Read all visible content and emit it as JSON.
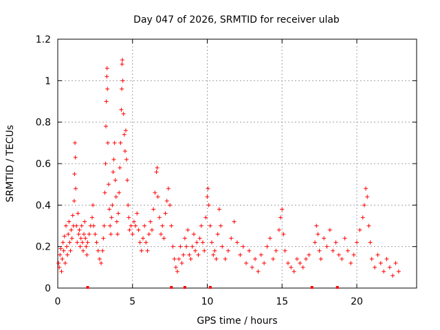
{
  "chart_data": {
    "type": "scatter",
    "title": "Day 047 of 2026, SRMTID for receiver ulab",
    "xlabel": "GPS time / hours",
    "ylabel": "SRMTID / TECUs",
    "xlim": [
      0,
      24
    ],
    "ylim": [
      0,
      1.2
    ],
    "xticks": [
      0,
      5,
      10,
      15,
      20
    ],
    "xtick_labels": [
      "0",
      "5",
      "10",
      "15",
      "20"
    ],
    "yticks": [
      0,
      0.2,
      0.4,
      0.6,
      0.8,
      1.0,
      1.2
    ],
    "ytick_labels": [
      "0",
      "0.2",
      "0.4",
      "0.6",
      "0.8",
      "1",
      "1.2"
    ],
    "grid": true,
    "marker": "+",
    "color": "#ff0000",
    "series": [
      {
        "name": "SRMTID",
        "points": [
          [
            0.05,
            0.12
          ],
          [
            0.1,
            0.1
          ],
          [
            0.15,
            0.16
          ],
          [
            0.2,
            0.19
          ],
          [
            0.25,
            0.08
          ],
          [
            0.3,
            0.14
          ],
          [
            0.35,
            0.22
          ],
          [
            0.4,
            0.18
          ],
          [
            0.45,
            0.25
          ],
          [
            0.5,
            0.12
          ],
          [
            0.55,
            0.3
          ],
          [
            0.6,
            0.2
          ],
          [
            0.65,
            0.16
          ],
          [
            0.7,
            0.26
          ],
          [
            0.75,
            0.32
          ],
          [
            0.8,
            0.22
          ],
          [
            0.85,
            0.18
          ],
          [
            0.9,
            0.28
          ],
          [
            0.95,
            0.24
          ],
          [
            1.0,
            0.35
          ],
          [
            1.05,
            0.3
          ],
          [
            1.1,
            0.42
          ],
          [
            1.12,
            0.55
          ],
          [
            1.15,
            0.7
          ],
          [
            1.18,
            0.63
          ],
          [
            1.2,
            0.48
          ],
          [
            1.25,
            0.3
          ],
          [
            1.3,
            0.22
          ],
          [
            1.35,
            0.36
          ],
          [
            1.4,
            0.26
          ],
          [
            1.45,
            0.28
          ],
          [
            1.5,
            0.2
          ],
          [
            1.55,
            0.24
          ],
          [
            1.6,
            0.3
          ],
          [
            1.65,
            0.22
          ],
          [
            1.7,
            0.18
          ],
          [
            1.75,
            0.26
          ],
          [
            1.8,
            0.32
          ],
          [
            1.85,
            0.24
          ],
          [
            1.9,
            0.2
          ],
          [
            1.95,
            0.16
          ],
          [
            2.0,
            0.22
          ],
          [
            2.1,
            0.26
          ],
          [
            2.2,
            0.3
          ],
          [
            2.3,
            0.34
          ],
          [
            2.35,
            0.4
          ],
          [
            2.4,
            0.3
          ],
          [
            2.5,
            0.26
          ],
          [
            2.6,
            0.22
          ],
          [
            2.7,
            0.18
          ],
          [
            2.8,
            0.14
          ],
          [
            2.9,
            0.12
          ],
          [
            3.0,
            0.18
          ],
          [
            3.05,
            0.24
          ],
          [
            3.1,
            0.3
          ],
          [
            3.15,
            0.46
          ],
          [
            3.2,
            0.6
          ],
          [
            3.22,
            0.78
          ],
          [
            3.25,
            0.9
          ],
          [
            3.28,
            1.02
          ],
          [
            3.3,
            1.06
          ],
          [
            3.32,
            0.96
          ],
          [
            3.35,
            0.7
          ],
          [
            3.4,
            0.5
          ],
          [
            3.45,
            0.38
          ],
          [
            3.5,
            0.3
          ],
          [
            3.55,
            0.26
          ],
          [
            3.6,
            0.34
          ],
          [
            3.65,
            0.4
          ],
          [
            3.7,
            0.56
          ],
          [
            3.75,
            0.62
          ],
          [
            3.8,
            0.7
          ],
          [
            3.85,
            0.52
          ],
          [
            3.9,
            0.44
          ],
          [
            3.95,
            0.32
          ],
          [
            4.0,
            0.26
          ],
          [
            4.05,
            0.36
          ],
          [
            4.1,
            0.46
          ],
          [
            4.15,
            0.58
          ],
          [
            4.2,
            0.7
          ],
          [
            4.25,
            0.86
          ],
          [
            4.28,
            0.96
          ],
          [
            4.3,
            1.08
          ],
          [
            4.32,
            1.1
          ],
          [
            4.35,
            1.0
          ],
          [
            4.4,
            0.84
          ],
          [
            4.45,
            0.74
          ],
          [
            4.5,
            0.66
          ],
          [
            4.55,
            0.76
          ],
          [
            4.6,
            0.62
          ],
          [
            4.65,
            0.52
          ],
          [
            4.7,
            0.4
          ],
          [
            4.75,
            0.34
          ],
          [
            4.8,
            0.28
          ],
          [
            4.9,
            0.3
          ],
          [
            5.0,
            0.26
          ],
          [
            5.1,
            0.32
          ],
          [
            5.2,
            0.3
          ],
          [
            5.3,
            0.36
          ],
          [
            5.4,
            0.28
          ],
          [
            5.5,
            0.22
          ],
          [
            5.6,
            0.18
          ],
          [
            5.7,
            0.24
          ],
          [
            5.8,
            0.3
          ],
          [
            5.9,
            0.22
          ],
          [
            6.0,
            0.18
          ],
          [
            6.1,
            0.26
          ],
          [
            6.2,
            0.32
          ],
          [
            6.3,
            0.28
          ],
          [
            6.4,
            0.38
          ],
          [
            6.5,
            0.46
          ],
          [
            6.6,
            0.56
          ],
          [
            6.65,
            0.58
          ],
          [
            6.7,
            0.44
          ],
          [
            6.8,
            0.34
          ],
          [
            6.9,
            0.26
          ],
          [
            7.0,
            0.3
          ],
          [
            7.1,
            0.24
          ],
          [
            7.2,
            0.36
          ],
          [
            7.3,
            0.42
          ],
          [
            7.4,
            0.48
          ],
          [
            7.5,
            0.4
          ],
          [
            7.6,
            0.3
          ],
          [
            7.7,
            0.2
          ],
          [
            7.8,
            0.14
          ],
          [
            7.9,
            0.1
          ],
          [
            8.0,
            0.08
          ],
          [
            8.1,
            0.14
          ],
          [
            8.2,
            0.2
          ],
          [
            8.3,
            0.12
          ],
          [
            8.4,
            0.16
          ],
          [
            8.5,
            0.24
          ],
          [
            8.6,
            0.2
          ],
          [
            8.7,
            0.28
          ],
          [
            8.8,
            0.16
          ],
          [
            8.9,
            0.14
          ],
          [
            9.0,
            0.2
          ],
          [
            9.1,
            0.26
          ],
          [
            9.2,
            0.18
          ],
          [
            9.3,
            0.22
          ],
          [
            9.4,
            0.16
          ],
          [
            9.5,
            0.24
          ],
          [
            9.6,
            0.3
          ],
          [
            9.7,
            0.22
          ],
          [
            9.8,
            0.18
          ],
          [
            9.9,
            0.34
          ],
          [
            10.0,
            0.44
          ],
          [
            10.05,
            0.48
          ],
          [
            10.1,
            0.4
          ],
          [
            10.2,
            0.3
          ],
          [
            10.3,
            0.22
          ],
          [
            10.4,
            0.16
          ],
          [
            10.5,
            0.18
          ],
          [
            10.6,
            0.14
          ],
          [
            10.7,
            0.26
          ],
          [
            10.8,
            0.38
          ],
          [
            10.9,
            0.3
          ],
          [
            11.0,
            0.2
          ],
          [
            11.2,
            0.14
          ],
          [
            11.4,
            0.18
          ],
          [
            11.6,
            0.24
          ],
          [
            11.8,
            0.32
          ],
          [
            12.0,
            0.22
          ],
          [
            12.2,
            0.16
          ],
          [
            12.4,
            0.2
          ],
          [
            12.6,
            0.12
          ],
          [
            12.8,
            0.18
          ],
          [
            13.0,
            0.1
          ],
          [
            13.2,
            0.14
          ],
          [
            13.4,
            0.08
          ],
          [
            13.6,
            0.16
          ],
          [
            13.8,
            0.12
          ],
          [
            14.0,
            0.2
          ],
          [
            14.2,
            0.24
          ],
          [
            14.4,
            0.14
          ],
          [
            14.6,
            0.18
          ],
          [
            14.8,
            0.28
          ],
          [
            14.9,
            0.34
          ],
          [
            15.0,
            0.38
          ],
          [
            15.1,
            0.26
          ],
          [
            15.2,
            0.18
          ],
          [
            15.4,
            0.12
          ],
          [
            15.6,
            0.1
          ],
          [
            15.8,
            0.08
          ],
          [
            16.0,
            0.14
          ],
          [
            16.2,
            0.12
          ],
          [
            16.4,
            0.1
          ],
          [
            16.6,
            0.14
          ],
          [
            16.8,
            0.16
          ],
          [
            17.2,
            0.22
          ],
          [
            17.3,
            0.3
          ],
          [
            17.4,
            0.26
          ],
          [
            17.5,
            0.18
          ],
          [
            17.6,
            0.14
          ],
          [
            17.8,
            0.24
          ],
          [
            18.0,
            0.2
          ],
          [
            18.2,
            0.28
          ],
          [
            18.4,
            0.18
          ],
          [
            18.6,
            0.22
          ],
          [
            18.8,
            0.16
          ],
          [
            19.0,
            0.14
          ],
          [
            19.2,
            0.24
          ],
          [
            19.4,
            0.18
          ],
          [
            19.6,
            0.12
          ],
          [
            19.8,
            0.16
          ],
          [
            20.0,
            0.22
          ],
          [
            20.2,
            0.28
          ],
          [
            20.4,
            0.34
          ],
          [
            20.5,
            0.4
          ],
          [
            20.6,
            0.48
          ],
          [
            20.7,
            0.44
          ],
          [
            20.8,
            0.3
          ],
          [
            20.9,
            0.22
          ],
          [
            21.0,
            0.14
          ],
          [
            21.2,
            0.1
          ],
          [
            21.4,
            0.16
          ],
          [
            21.6,
            0.12
          ],
          [
            21.8,
            0.08
          ],
          [
            22.0,
            0.14
          ],
          [
            22.2,
            0.1
          ],
          [
            22.4,
            0.06
          ],
          [
            22.6,
            0.12
          ],
          [
            22.8,
            0.08
          ]
        ]
      }
    ],
    "zero_markers": [
      2.0,
      7.6,
      8.5,
      10.2,
      17.0,
      18.7
    ],
    "legend": "none"
  }
}
